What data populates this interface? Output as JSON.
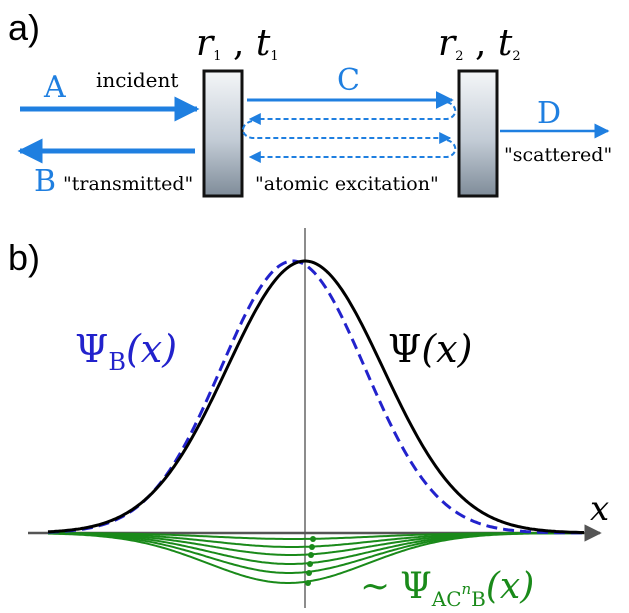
{
  "colors": {
    "blue_arrow": "#1f7fe0",
    "dark_blue_dashed": "#2222cc",
    "black": "#000000",
    "green": "#1a8a1a",
    "axis_gray": "#555555",
    "mirror_light": "#f4f6f8",
    "mirror_dark": "#7f8c99"
  },
  "panel_a": {
    "label": "a)",
    "mirror1": {
      "r": "r",
      "r_sub": "1",
      "t": "t",
      "t_sub": "1"
    },
    "mirror2": {
      "r": "r",
      "r_sub": "2",
      "t": "t",
      "t_sub": "2"
    },
    "letters": {
      "A": "A",
      "B": "B",
      "C": "C",
      "D": "D"
    },
    "texts": {
      "incident": "incident",
      "transmitted": "\"transmitted\"",
      "atomic": "\"atomic excitation\"",
      "scattered": "\"scattered\""
    }
  },
  "panel_b": {
    "label": "b)",
    "psi_b": {
      "psi": "Ψ",
      "sub": "B",
      "arg": "(x)"
    },
    "psi": {
      "psi": "Ψ",
      "arg": "(x)"
    },
    "psi_acb": {
      "tilde": "∼",
      "psi": "Ψ",
      "sub_ac": "AC",
      "sup": "n",
      "sub_b": "B",
      "arg": "(x)"
    },
    "axis_label": "x"
  }
}
